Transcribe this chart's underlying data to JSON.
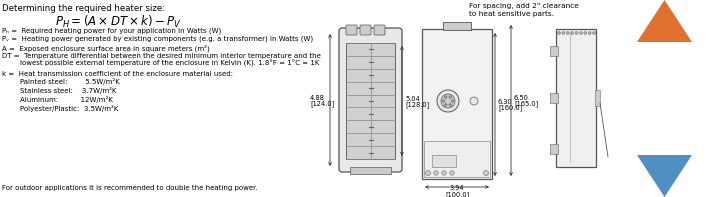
{
  "bg_color": "#ffffff",
  "text_color": "#000000",
  "line_color": "#555555",
  "dim_color": "#333333",
  "title": "Determining the required heater size:",
  "footer": "For outdoor applications it is recommended to double the heating power.",
  "spacing_note": "For spacing, add 2\" clearance\nto heat sensitive parts.",
  "dim_front_height_in": "5.04",
  "dim_front_height_mm": "128.0",
  "dim_front_width_in": "4.88",
  "dim_front_width_mm": "124.0",
  "dim_side_height1_in": "6.30",
  "dim_side_height1_mm": "160.0",
  "dim_side_height2_in": "6.50",
  "dim_side_height2_mm": "165.0",
  "dim_bottom_in": "3.94",
  "dim_bottom_mm": "100.0",
  "orange_color": "#E07030",
  "blue_color": "#5090C0",
  "gray_light": "#e8e8e8",
  "gray_med": "#cccccc",
  "gray_dark": "#aaaaaa"
}
